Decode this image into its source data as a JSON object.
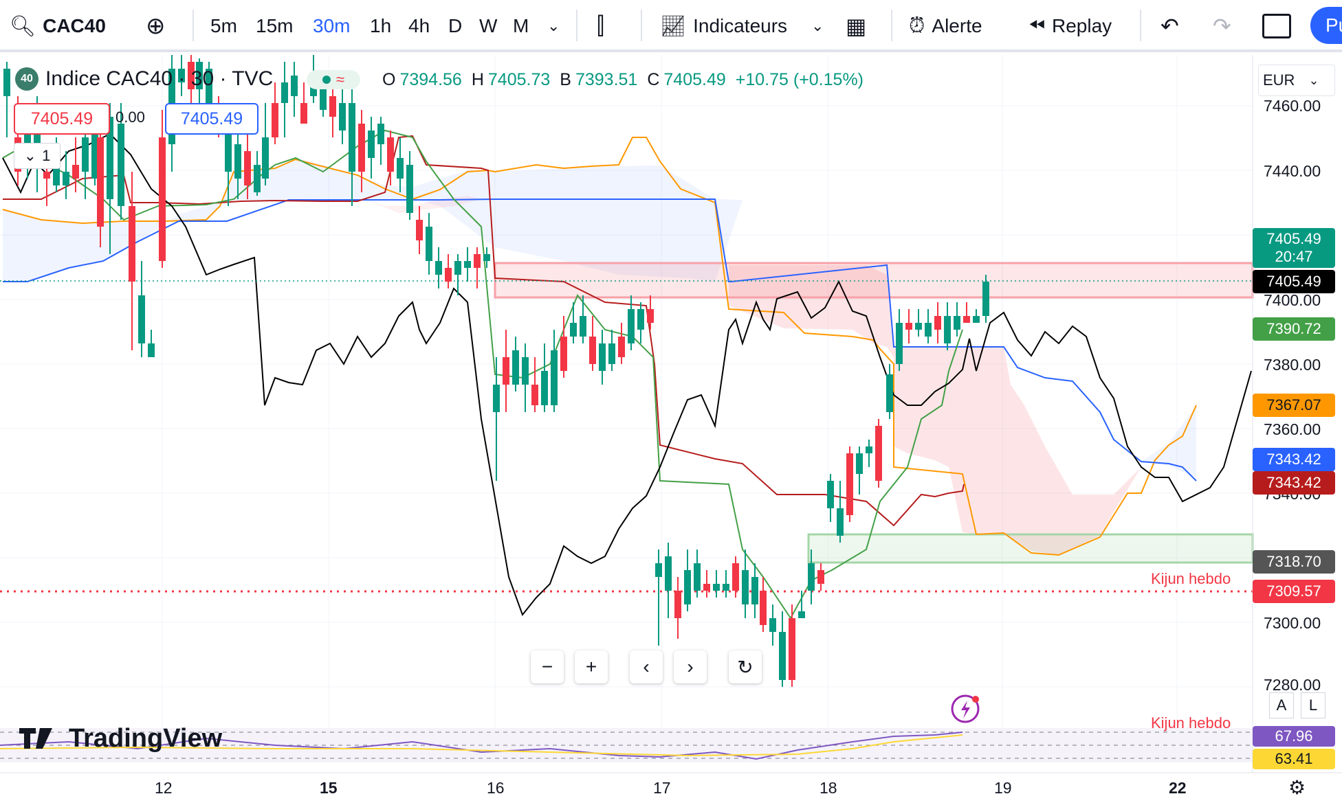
{
  "toolbar": {
    "symbol": "CAC40",
    "intervals": [
      "5m",
      "15m",
      "30m",
      "1h",
      "4h",
      "D",
      "W",
      "M"
    ],
    "active_interval": "30m",
    "indicators_label": "Indicateurs",
    "alert_label": "Alerte",
    "replay_label": "Replay",
    "publish_label": "Pu"
  },
  "legend": {
    "badge": "40",
    "title": "Indice CAC40 · 30 · TVC",
    "open_label": "O",
    "open": "7394.56",
    "high_label": "H",
    "high": "7405.73",
    "low_label": "B",
    "low": "7393.51",
    "close_label": "C",
    "close": "7405.49",
    "change": "+10.75 (+0.15%)",
    "sell_price": "7405.49",
    "spread": "0.00",
    "buy_price": "7405.49",
    "qty": "1"
  },
  "currency": "EUR",
  "price_scale": {
    "ticks": [
      "7460.00",
      "7440.00",
      "7400.00",
      "7380.00",
      "7360.00",
      "7340.00",
      "7300.00",
      "7280.00"
    ]
  },
  "price_tags": [
    {
      "value": "7405.49",
      "sub": "20:47",
      "color": "#089981"
    },
    {
      "value": "7405.49",
      "color": "#000000"
    },
    {
      "value": "7390.72",
      "color": "#43a047"
    },
    {
      "value": "7367.07",
      "color": "#ff9800"
    },
    {
      "value": "7343.42",
      "color": "#2962ff"
    },
    {
      "value": "7343.42",
      "color": "#b71c1c"
    },
    {
      "value": "7318.70",
      "color": "#555555"
    },
    {
      "value": "7309.57",
      "color": "#f23645"
    }
  ],
  "kijun_label": "Kijun hebdo",
  "kijun_label_lower": "Kijun hebdo",
  "rsi": {
    "value1": "67.96",
    "value2": "63.41"
  },
  "time_axis": {
    "labels": [
      "12",
      "15",
      "16",
      "17",
      "18",
      "19",
      "22"
    ]
  },
  "watermark": "TradingView",
  "scale_buttons": {
    "auto": "A",
    "log": "L"
  },
  "colors": {
    "up": "#089981",
    "down": "#f23645",
    "accent": "#2962ff"
  }
}
